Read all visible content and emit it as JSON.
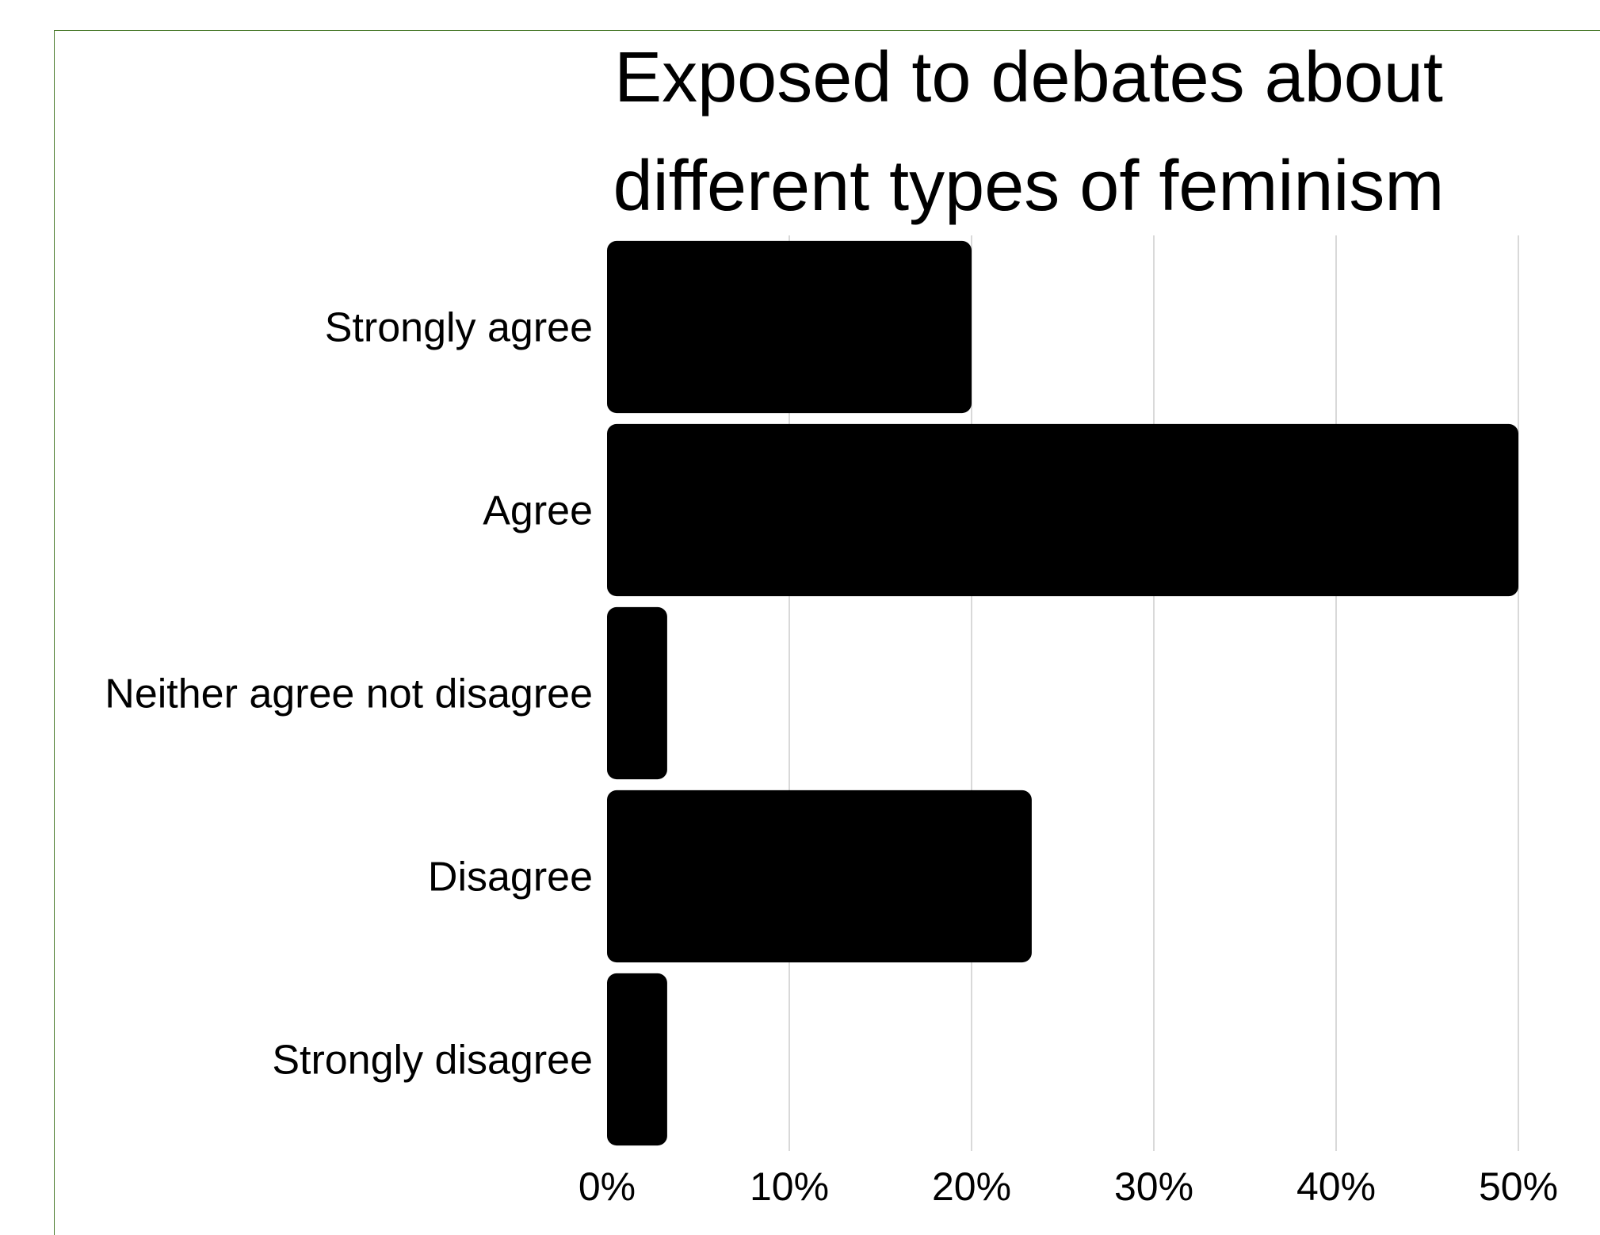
{
  "chart_data": {
    "type": "bar",
    "orientation": "horizontal",
    "title": "Exposed to debates about different types of feminism",
    "title_lines": [
      "Exposed to debates about",
      "different types of feminism"
    ],
    "categories": [
      "Strongly agree",
      "Agree",
      "Neither agree not disagree",
      "Disagree",
      "Strongly disagree"
    ],
    "values": [
      20,
      50,
      3.3,
      23.3,
      3.3
    ],
    "value_unit": "%",
    "xlim": [
      0,
      50
    ],
    "x_ticks": [
      "0%",
      "10%",
      "20%",
      "30%",
      "40%",
      "50%"
    ],
    "grid": true,
    "legend": "none",
    "colors": {
      "bar": "#000000",
      "grid": "#d9d9d9",
      "frame": "#4a7a2c"
    }
  }
}
